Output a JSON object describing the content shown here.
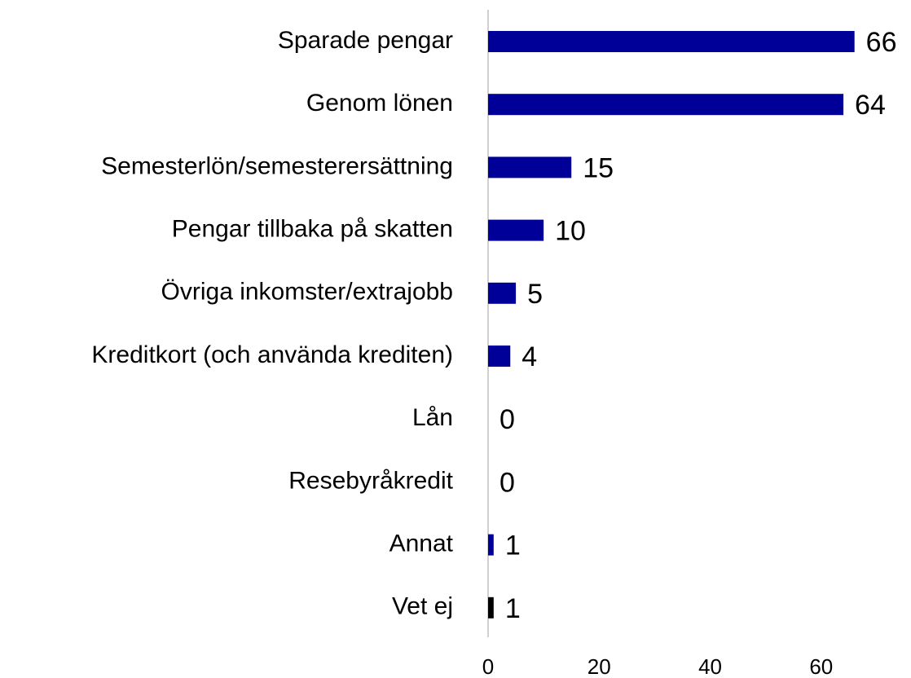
{
  "chart_data": {
    "type": "barh",
    "categories": [
      "Sparade pengar",
      "Genom lönen",
      "Semesterlön/semesterersättning",
      "Pengar tillbaka på skatten",
      "Övriga inkomster/extrajobb",
      "Kreditkort (och använda krediten)",
      "Lån",
      "Resebyråkredit",
      "Annat",
      "Vet ej"
    ],
    "values": [
      66,
      64,
      15,
      10,
      5,
      4,
      0,
      0,
      1,
      1
    ],
    "colors": [
      "#000099",
      "#000099",
      "#000099",
      "#000099",
      "#000099",
      "#000099",
      "#000099",
      "#000099",
      "#000099",
      "#000000"
    ],
    "xlim": [
      0,
      75
    ],
    "xticks": [
      0,
      20,
      40,
      60
    ],
    "grid": false
  }
}
